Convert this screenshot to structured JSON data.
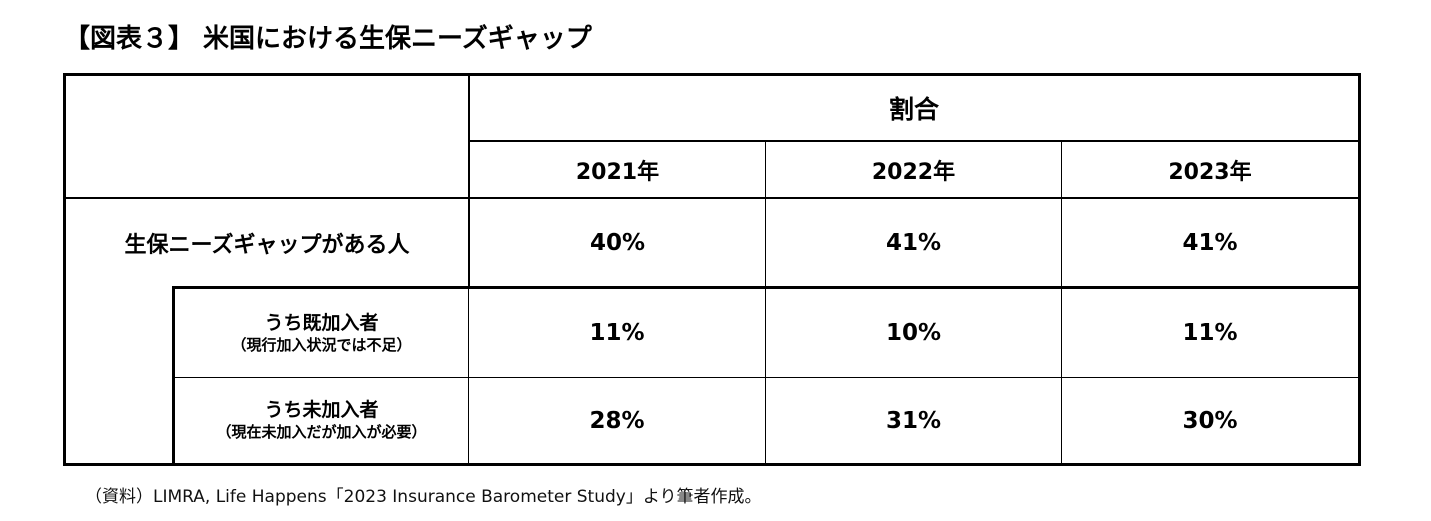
{
  "title": "【図表３】 米国における生保ニーズギャップ",
  "table": {
    "group_header": "割合",
    "years": [
      "2021年",
      "2022年",
      "2023年"
    ],
    "rows": [
      {
        "label": "生保ニーズギャップがある人",
        "note": "",
        "values": [
          "40%",
          "41%",
          "41%"
        ]
      },
      {
        "label": "うち既加入者",
        "note": "（現行加入状況では不足）",
        "values": [
          "11%",
          "10%",
          "11%"
        ]
      },
      {
        "label": "うち未加入者",
        "note": "（現在未加入だが加入が必要）",
        "values": [
          "28%",
          "31%",
          "30%"
        ]
      }
    ]
  },
  "source": "（資料）LIMRA, Life Happens「2023 Insurance Barometer Study」より筆者作成。"
}
